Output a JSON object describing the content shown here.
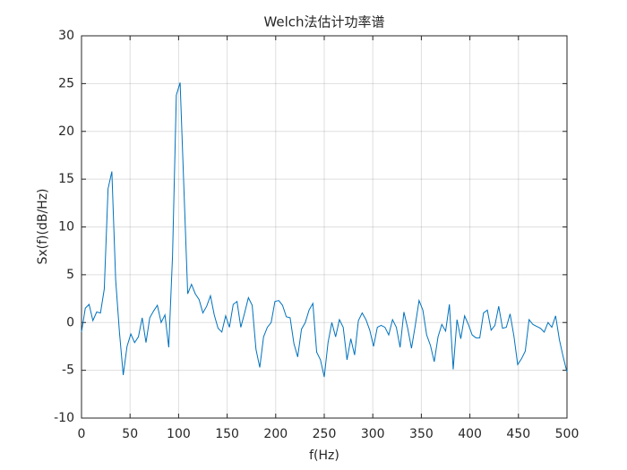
{
  "chart_data": {
    "type": "line",
    "title": "Welch法估计功率谱",
    "xlabel": "f(Hz)",
    "ylabel": "Sx(f)(dB/Hz)",
    "color": "#0072bd",
    "grid": true,
    "xlim": [
      0,
      500
    ],
    "xticks": [
      0,
      50,
      100,
      150,
      200,
      250,
      300,
      350,
      400,
      450,
      500
    ],
    "ylim": [
      -10,
      30
    ],
    "yticks": [
      -10,
      -5,
      0,
      5,
      10,
      15,
      20,
      25,
      30
    ],
    "x": [
      0,
      3.90625,
      7.8125,
      11.71875,
      15.625,
      19.53125,
      23.4375,
      27.34375,
      31.25,
      35.15625,
      39.0625,
      42.96875,
      46.875,
      50.78125,
      54.6875,
      58.59375,
      62.5,
      66.40625,
      70.3125,
      74.21875,
      78.125,
      82.03125,
      85.9375,
      89.84375,
      93.75,
      97.65625,
      101.5625,
      105.46875,
      109.375,
      113.28125,
      117.1875,
      121.09375,
      125,
      128.90625,
      132.8125,
      136.71875,
      140.625,
      144.53125,
      148.4375,
      152.34375,
      156.25,
      160.15625,
      164.0625,
      167.96875,
      171.875,
      175.78125,
      179.6875,
      183.59375,
      187.5,
      191.40625,
      195.3125,
      199.21875,
      203.125,
      207.03125,
      210.9375,
      214.84375,
      218.75,
      222.65625,
      226.5625,
      230.46875,
      234.375,
      238.28125,
      242.1875,
      246.09375,
      250,
      253.90625,
      257.8125,
      261.71875,
      265.625,
      269.53125,
      273.4375,
      277.34375,
      281.25,
      285.15625,
      289.0625,
      292.96875,
      296.875,
      300.78125,
      304.6875,
      308.59375,
      312.5,
      316.40625,
      320.3125,
      324.21875,
      328.125,
      332.03125,
      335.9375,
      339.84375,
      343.75,
      347.65625,
      351.5625,
      355.46875,
      359.375,
      363.28125,
      367.1875,
      371.09375,
      375,
      378.90625,
      382.8125,
      386.71875,
      390.625,
      394.53125,
      398.4375,
      402.34375,
      406.25,
      410.15625,
      414.0625,
      417.96875,
      421.875,
      425.78125,
      429.6875,
      433.59375,
      437.5,
      441.40625,
      445.3125,
      449.21875,
      453.125,
      457.03125,
      460.9375,
      464.84375,
      468.75,
      472.65625,
      476.5625,
      480.46875,
      484.375,
      488.28125,
      492.1875,
      496.09375,
      500
    ],
    "values": [
      -1,
      1.5,
      1.9,
      0.2,
      1.1,
      1,
      3.5,
      14,
      15.8,
      4.5,
      -1,
      -5.5,
      -2.5,
      -1.2,
      -2.1,
      -1.5,
      0.5,
      -2.1,
      0.5,
      1.2,
      1.8,
      0,
      0.8,
      -2.6,
      7,
      23.8,
      25.1,
      14,
      3,
      4,
      3,
      2.4,
      1,
      1.7,
      2.8,
      0.8,
      -0.6,
      -1,
      0.7,
      -0.5,
      1.9,
      2.2,
      -0.5,
      1,
      2.6,
      1.8,
      -2.8,
      -4.7,
      -1.5,
      -0.5,
      0,
      2.2,
      2.3,
      1.8,
      0.6,
      0.5,
      -2.2,
      -3.6,
      -0.7,
      0,
      1.3,
      2,
      -3.1,
      -3.9,
      -5.7,
      -2.1,
      0,
      -1.5,
      0.3,
      -0.5,
      -3.9,
      -1.7,
      -3.4,
      0.2,
      1,
      0.3,
      -0.8,
      -2.5,
      -0.5,
      -0.3,
      -0.5,
      -1.3,
      0.3,
      -0.5,
      -2.6,
      1.1,
      -0.6,
      -2.7,
      -0.3,
      2.3,
      1.3,
      -1.3,
      -2.4,
      -4.1,
      -1.5,
      -0.2,
      -0.9,
      1.9,
      -4.9,
      0.3,
      -1.7,
      0.7,
      -0.2,
      -1.3,
      -1.6,
      -1.6,
      1,
      1.3,
      -0.8,
      -0.3,
      1.7,
      -0.6,
      -0.5,
      0.9,
      -1.4,
      -4.4,
      -3.8,
      -3,
      0.3,
      -0.2,
      -0.4,
      -0.6,
      -1,
      0,
      -0.5,
      0.7,
      -1.8,
      -3.6,
      -5.2
    ]
  }
}
